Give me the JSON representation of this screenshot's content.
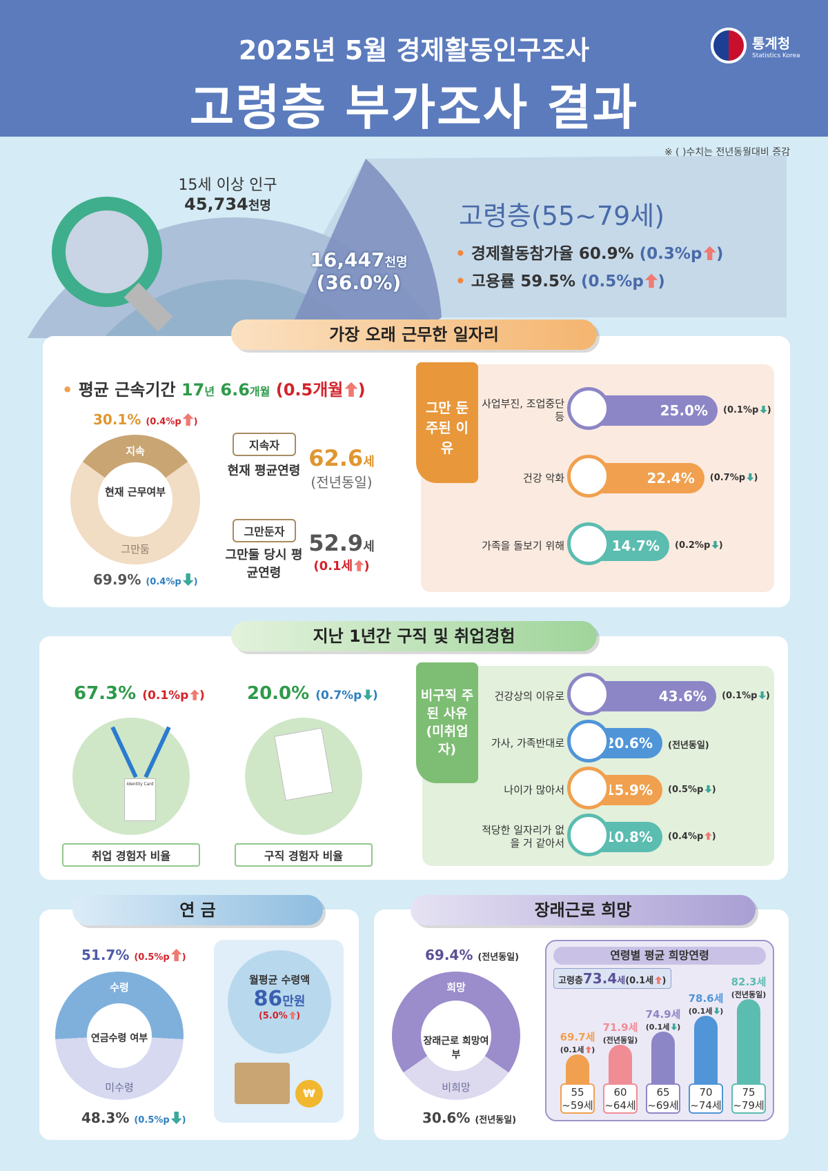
{
  "header": {
    "line1": "2025년 5월 경제활동인구조사",
    "line2": "고령층 부가조사 결과",
    "logo_name": "통계청",
    "logo_en": "Statistics Korea"
  },
  "note": "※ ( )수치는 전년동월대비 증감",
  "overview": {
    "pop_label": "15세 이상 인구",
    "pop_value": "45,734",
    "pop_unit": "천명",
    "elder_value": "16,447",
    "elder_unit": "천명",
    "elder_share": "(36.0%)",
    "title": "고령층(55~79세)",
    "items": [
      {
        "label": "경제활동참가율",
        "value": "60.9%",
        "change": "(0.3%p",
        "dir": "up"
      },
      {
        "label": "고용률",
        "value": "59.5%",
        "change": "(0.5%p",
        "dir": "up"
      }
    ]
  },
  "longest_job": {
    "title": "가장 오래 근무한 일자리",
    "tenure_label": "평균 근속기간",
    "tenure_years": "17",
    "tenure_y_unit": "년",
    "tenure_months": "6.6",
    "tenure_m_unit": "개월",
    "tenure_change": "(0.5개월",
    "donut": {
      "continue_label": "지속",
      "quit_label": "그만둠",
      "center": "현재 근무여부",
      "continue_pct": "30.1%",
      "continue_change": "(0.4%p",
      "quit_pct": "69.9%",
      "quit_change": "(0.4%p",
      "continue_share": 30.1
    },
    "continuing": {
      "badge": "지속자",
      "label": "현재 평균연령",
      "value": "62.6",
      "unit": "세",
      "change": "(전년동일)"
    },
    "quit": {
      "badge": "그만둔자",
      "label": "그만둘 당시 평균연령",
      "value": "52.9",
      "unit": "세",
      "change": "(0.1세"
    },
    "reasons_title": "그만 둔 주된 이유",
    "reasons": [
      {
        "label": "사업부진, 조업중단 등",
        "value": 25.0,
        "text": "25.0%",
        "change": "(0.1%p",
        "dir": "down",
        "color": "#8c86c6",
        "icon": "chart-decline-icon"
      },
      {
        "label": "건강 악화",
        "value": 22.4,
        "text": "22.4%",
        "change": "(0.7%p",
        "dir": "down",
        "color": "#f0a04e",
        "icon": "injured-person-icon"
      },
      {
        "label": "가족을 돌보기 위해",
        "value": 14.7,
        "text": "14.7%",
        "change": "(0.2%p",
        "dir": "down",
        "color": "#5bbcb0",
        "icon": "caregiver-icon"
      }
    ]
  },
  "job_search": {
    "title": "지난 1년간 구직 및 취업경험",
    "employed": {
      "value": "67.3%",
      "change": "(0.1%p",
      "dir": "up",
      "label": "취업 경험자 비율",
      "card_text": "Identity Card"
    },
    "searched": {
      "value": "20.0%",
      "change": "(0.7%p",
      "dir": "down",
      "label": "구직 경험자 비율"
    },
    "reasons_title": "비구직 주된 사유 (미취업자)",
    "reasons": [
      {
        "label": "건강상의 이유로",
        "value": 43.6,
        "text": "43.6%",
        "change": "(0.1%p",
        "dir": "down",
        "color": "#8c86c6",
        "icon": "patient-icon"
      },
      {
        "label": "가사, 가족반대로",
        "value": 20.6,
        "text": "20.6%",
        "change": "(전년동일)",
        "dir": "",
        "color": "#4f95d8",
        "icon": "sweater-icon"
      },
      {
        "label": "나이가 많아서",
        "value": 15.9,
        "text": "15.9%",
        "change": "(0.5%p",
        "dir": "down",
        "color": "#f0a04e",
        "icon": "elderly-couple-icon"
      },
      {
        "label": "적당한 일자리가 없을 거 같아서",
        "value": 10.8,
        "text": "10.8%",
        "change": "(0.4%p",
        "dir": "up",
        "color": "#5bbcb0",
        "icon": "building-search-icon"
      }
    ]
  },
  "pension": {
    "title": "연 금",
    "receive_label": "수령",
    "not_label": "미수령",
    "center": "연금수령 여부",
    "receive_pct": "51.7%",
    "receive_change": "(0.5%p",
    "not_pct": "48.3%",
    "not_change": "(0.5%p",
    "receive_share": 51.7,
    "monthly_label": "월평균 수령액",
    "monthly_value": "86",
    "monthly_unit": "만원",
    "monthly_change": "(5.0%"
  },
  "future_work": {
    "title": "장래근로 희망",
    "hope_label": "희망",
    "no_label": "비희망",
    "center": "장래근로 희망여부",
    "hope_pct": "69.4%",
    "hope_change": "(전년동일)",
    "no_pct": "30.6%",
    "no_change": "(전년동일)",
    "hope_share": 69.4,
    "age_title": "연령별 평균 희망연령",
    "overall_label": "고령층",
    "overall_value": "73.4",
    "overall_unit": "세",
    "overall_change": "(0.1세",
    "ages": [
      {
        "group": "55 ~59세",
        "value": 69.7,
        "text": "69.7세",
        "change": "(0.1세",
        "dir": "up",
        "color": "#f0a04e"
      },
      {
        "group": "60 ~64세",
        "value": 71.9,
        "text": "71.9세",
        "change": "(전년동일)",
        "dir": "",
        "color": "#f08c94"
      },
      {
        "group": "65 ~69세",
        "value": 74.9,
        "text": "74.9세",
        "change": "(0.1세",
        "dir": "down",
        "color": "#8c86c6"
      },
      {
        "group": "70 ~74세",
        "value": 78.6,
        "text": "78.6세",
        "change": "(0.1세",
        "dir": "down",
        "color": "#4f95d8"
      },
      {
        "group": "75 ~79세",
        "value": 82.3,
        "text": "82.3세",
        "change": "(전년동일)",
        "dir": "",
        "color": "#5bbcb0"
      }
    ]
  }
}
